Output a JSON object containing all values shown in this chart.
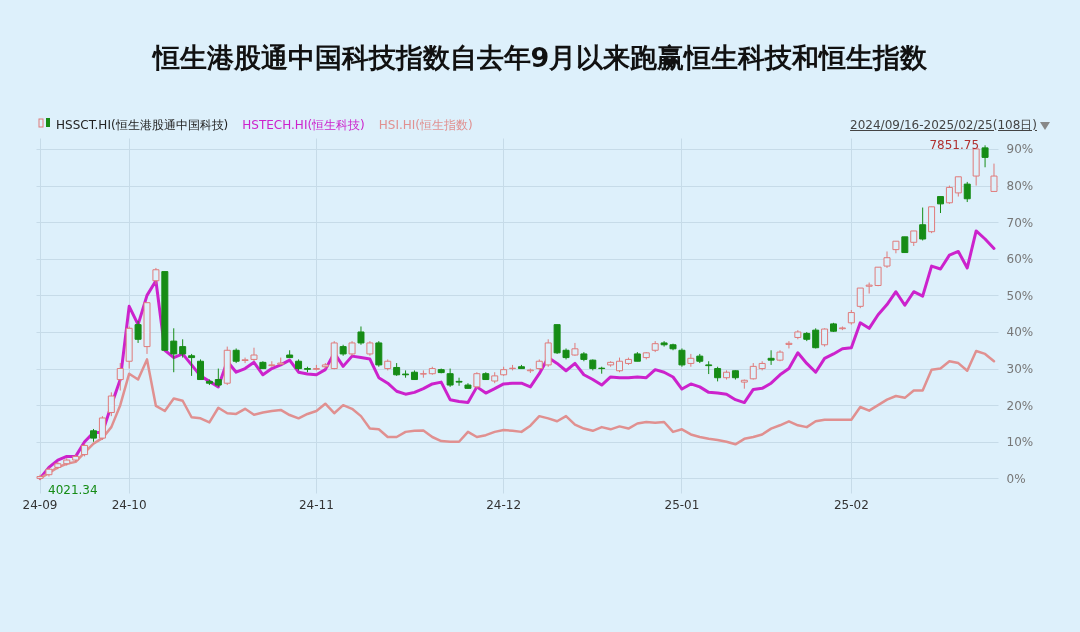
{
  "chart_data": {
    "type": "candlestick",
    "title": "恒生港股通中国科技指数自去年9月以来跑赢恒生科技和恒生指数",
    "categories": [
      "24-09",
      null,
      null,
      null,
      null,
      null,
      null,
      null,
      null,
      null,
      "24-10",
      null,
      null,
      null,
      null,
      null,
      null,
      null,
      null,
      null,
      null,
      null,
      null,
      null,
      null,
      null,
      null,
      null,
      null,
      null,
      null,
      "24-11",
      null,
      null,
      null,
      null,
      null,
      null,
      null,
      null,
      null,
      null,
      null,
      null,
      null,
      null,
      null,
      null,
      null,
      null,
      null,
      null,
      "24-12",
      null,
      null,
      null,
      null,
      null,
      null,
      null,
      null,
      null,
      null,
      null,
      null,
      null,
      null,
      null,
      null,
      null,
      null,
      null,
      "25-01",
      null,
      null,
      null,
      null,
      null,
      null,
      null,
      null,
      null,
      null,
      null,
      null,
      null,
      null,
      null,
      null,
      null,
      null,
      "25-02",
      null,
      null,
      null,
      null,
      null,
      null,
      null,
      null,
      null,
      null,
      null,
      null,
      null,
      null,
      null,
      null
    ],
    "ylim": [
      -4,
      93
    ],
    "yticks": [
      {
        "value": 0,
        "label": "0%"
      },
      {
        "value": 10,
        "label": "10%"
      },
      {
        "value": 20,
        "label": "20%"
      },
      {
        "value": 30,
        "label": "30%"
      },
      {
        "value": 40,
        "label": "40%"
      },
      {
        "value": 50,
        "label": "50%"
      },
      {
        "value": 60,
        "label": "60%"
      },
      {
        "value": 70,
        "label": "70%"
      },
      {
        "value": 80,
        "label": "80%"
      },
      {
        "value": 90,
        "label": "90%"
      }
    ],
    "grid": true,
    "legend": "top left",
    "annotations": [
      {
        "text": "4021.34",
        "x": "24-09",
        "y": -0.5
      },
      "7851.75",
      "2024/09/16-2025/02/25(108日)"
    ],
    "series": [
      {
        "name": "HSSCT.HI(恒生港股通中国科技)",
        "type": "candlestick",
        "color": "#222222",
        "ohlc": [
          [
            0,
            1,
            -0.5,
            0.5
          ],
          [
            1,
            3,
            0.5,
            2.5
          ],
          [
            3,
            4.5,
            2.5,
            4
          ],
          [
            4,
            5.5,
            3.5,
            5
          ],
          [
            5,
            6.5,
            4.5,
            6
          ],
          [
            6.5,
            9.5,
            6,
            9
          ],
          [
            13,
            13.5,
            10,
            11
          ],
          [
            11,
            17,
            10.5,
            16.5
          ],
          [
            18,
            23.5,
            17,
            22.5
          ],
          [
            27,
            31.5,
            24,
            30
          ],
          [
            32,
            41.5,
            30,
            41
          ],
          [
            42,
            43,
            37,
            38
          ],
          [
            36,
            48,
            34,
            48
          ],
          [
            54,
            57.5,
            53,
            57
          ],
          [
            56.5,
            56.5,
            35,
            35
          ],
          [
            37.5,
            41,
            29,
            34
          ],
          [
            36,
            38,
            33,
            34
          ],
          [
            33.5,
            34,
            28,
            33
          ],
          [
            32,
            32.5,
            27,
            27
          ],
          [
            26.5,
            27,
            25.5,
            26
          ],
          [
            27,
            30,
            25,
            25.5
          ],
          [
            26,
            36,
            25.5,
            35
          ],
          [
            35,
            35.5,
            31.5,
            32
          ],
          [
            32.2,
            33,
            31.5,
            32.4
          ],
          [
            32.5,
            35.7,
            32,
            33.7
          ],
          [
            31.7,
            32,
            30,
            30
          ],
          [
            30.8,
            32,
            30.5,
            31
          ],
          [
            31.2,
            33,
            31,
            31.5
          ],
          [
            33.7,
            35,
            33,
            33
          ],
          [
            32,
            32.5,
            29.5,
            30
          ],
          [
            30,
            30.5,
            29,
            29.8
          ],
          [
            29.8,
            31,
            29.5,
            30
          ],
          [
            30.5,
            31.5,
            30,
            31
          ],
          [
            30,
            37.5,
            29.8,
            37
          ],
          [
            36,
            36.5,
            33.5,
            34
          ],
          [
            34,
            37.5,
            33.5,
            37
          ],
          [
            40,
            41.5,
            36.5,
            37
          ],
          [
            34,
            37.5,
            33.5,
            37
          ],
          [
            37,
            37.5,
            30.5,
            31
          ],
          [
            30,
            32.5,
            29.5,
            32
          ],
          [
            30.3,
            31.5,
            28,
            28.3
          ],
          [
            28.5,
            29.5,
            27.5,
            28.3
          ],
          [
            29,
            29.5,
            27,
            27
          ],
          [
            28.5,
            29.5,
            27.5,
            28.6
          ],
          [
            28.6,
            30.5,
            28.3,
            30
          ],
          [
            29.7,
            30,
            28.7,
            28.9
          ],
          [
            28.6,
            30,
            25,
            25.5
          ],
          [
            26.5,
            27.5,
            25.3,
            26.3
          ],
          [
            25.5,
            26,
            24.5,
            24.6
          ],
          [
            25,
            29,
            24.5,
            28.6
          ],
          [
            28.6,
            29,
            27,
            27
          ],
          [
            26.6,
            29,
            26,
            28
          ],
          [
            28.3,
            30.5,
            28,
            29.7
          ],
          [
            30,
            31,
            29.5,
            30.1
          ],
          [
            30.5,
            31,
            30,
            30
          ],
          [
            29.4,
            30,
            28.8,
            29.6
          ],
          [
            30,
            32.5,
            29.5,
            32
          ],
          [
            31,
            38,
            30.5,
            37
          ],
          [
            42,
            42,
            34,
            34.3
          ],
          [
            35,
            35.5,
            32.5,
            33
          ],
          [
            33.7,
            37,
            33.5,
            35.4
          ],
          [
            34,
            34.5,
            32,
            32.5
          ],
          [
            32.3,
            32.5,
            29.5,
            30
          ],
          [
            30.1,
            30.5,
            28.6,
            30
          ],
          [
            31,
            32,
            30.5,
            31.7
          ],
          [
            29.4,
            33,
            29,
            32
          ],
          [
            31.4,
            33,
            31,
            32.5
          ],
          [
            34,
            34.5,
            32,
            32
          ],
          [
            33,
            34.5,
            32.5,
            34.3
          ],
          [
            35,
            37.5,
            34.5,
            36.8
          ],
          [
            37,
            37.5,
            36,
            36.5
          ],
          [
            36.5,
            36.8,
            35,
            35.4
          ],
          [
            35,
            35.5,
            30.5,
            31
          ],
          [
            31.4,
            34,
            30.5,
            32.8
          ],
          [
            33.4,
            34,
            31.5,
            32
          ],
          [
            31,
            32,
            28.5,
            30.8
          ],
          [
            30,
            30.5,
            26.5,
            27.5
          ],
          [
            27.5,
            29.5,
            27,
            29
          ],
          [
            29.4,
            29.5,
            27,
            27.5
          ],
          [
            26.3,
            27,
            24.5,
            26.8
          ],
          [
            27.2,
            31.5,
            27,
            30.6
          ],
          [
            30,
            32,
            29.5,
            31.4
          ],
          [
            32.8,
            35,
            31,
            32.3
          ],
          [
            32.3,
            35,
            32,
            34.5
          ],
          [
            36.6,
            37.5,
            35.5,
            36.9
          ],
          [
            38.5,
            40.5,
            38,
            40
          ],
          [
            39.6,
            40,
            37.5,
            38
          ],
          [
            40.5,
            41,
            35.5,
            35.7
          ],
          [
            36.5,
            41,
            36,
            40.8
          ],
          [
            42.2,
            42.5,
            40,
            40.2
          ],
          [
            40.9,
            41.5,
            40.5,
            41.1
          ],
          [
            42.5,
            46,
            42,
            45.3
          ],
          [
            47,
            52,
            46.5,
            52
          ],
          [
            52.5,
            53.5,
            50.5,
            52.8
          ],
          [
            52.7,
            57.7,
            52.5,
            57.7
          ],
          [
            58,
            62,
            57.5,
            60.3
          ],
          [
            62.5,
            64.8,
            61.5,
            64.8
          ],
          [
            66,
            66,
            61.7,
            61.7
          ],
          [
            64.5,
            67.6,
            63.5,
            67.6
          ],
          [
            69.3,
            74,
            65,
            65.4
          ],
          [
            67.4,
            74.2,
            67,
            74.2
          ],
          [
            77,
            77,
            72.5,
            75
          ],
          [
            75.3,
            80,
            75,
            79.5
          ],
          [
            78,
            82.4,
            77,
            82.4
          ],
          [
            80.4,
            81,
            75.5,
            76.4
          ],
          [
            82.6,
            90,
            80,
            90
          ],
          [
            90.3,
            91,
            85,
            87.7
          ],
          [
            78.4,
            86,
            78.4,
            82.6
          ]
        ],
        "colors": [
          "#e07a7a",
          "#e07a7a",
          "#e07a7a",
          "#e07a7a",
          "#e07a7a",
          "#e07a7a",
          "#168c16",
          "#e07a7a",
          "#e07a7a",
          "#e07a7a",
          "#e07a7a",
          "#168c16",
          "#e07a7a",
          "#e07a7a",
          "#168c16",
          "#168c16",
          "#168c16",
          "#168c16",
          "#168c16",
          "#168c16",
          "#168c16",
          "#e07a7a",
          "#168c16",
          "#e07a7a",
          "#e07a7a",
          "#168c16",
          "#e07a7a",
          "#e07a7a",
          "#168c16",
          "#168c16",
          "#168c16",
          "#e07a7a",
          "#e07a7a",
          "#e07a7a",
          "#168c16",
          "#e07a7a",
          "#168c16",
          "#e07a7a",
          "#168c16",
          "#e07a7a",
          "#168c16",
          "#168c16",
          "#168c16",
          "#e07a7a",
          "#e07a7a",
          "#168c16",
          "#168c16",
          "#168c16",
          "#168c16",
          "#e07a7a",
          "#168c16",
          "#e07a7a",
          "#e07a7a",
          "#e07a7a",
          "#168c16",
          "#e07a7a",
          "#e07a7a",
          "#e07a7a",
          "#168c16",
          "#168c16",
          "#e07a7a",
          "#168c16",
          "#168c16",
          "#168c16",
          "#e07a7a",
          "#e07a7a",
          "#e07a7a",
          "#168c16",
          "#e07a7a",
          "#e07a7a",
          "#168c16",
          "#168c16",
          "#168c16",
          "#e07a7a",
          "#168c16",
          "#168c16",
          "#168c16",
          "#e07a7a",
          "#168c16",
          "#e07a7a",
          "#e07a7a",
          "#e07a7a",
          "#168c16",
          "#e07a7a",
          "#e07a7a",
          "#e07a7a",
          "#168c16",
          "#168c16",
          "#e07a7a",
          "#168c16",
          "#e07a7a",
          "#e07a7a",
          "#e07a7a",
          "#e07a7a",
          "#e07a7a",
          "#e07a7a",
          "#e07a7a",
          "#168c16",
          "#e07a7a",
          "#168c16",
          "#e07a7a",
          "#168c16",
          "#e07a7a",
          "#e07a7a",
          "#168c16",
          "#e07a7a",
          "#168c16",
          "#e07a7a"
        ]
      },
      {
        "name": "HSTECH.HI(恒生科技)",
        "type": "line",
        "color": "#cc22cc",
        "values": [
          0,
          3,
          5,
          6,
          6,
          10,
          12.5,
          12.5,
          20,
          27,
          47,
          42,
          50,
          54,
          35,
          33,
          34,
          31,
          28,
          26.5,
          25,
          32,
          29,
          30,
          31.7,
          28.3,
          30,
          31,
          32.3,
          29,
          28.5,
          28.3,
          29.7,
          34.3,
          30.6,
          33.4,
          33,
          32.6,
          27.5,
          26,
          23.8,
          23,
          23.5,
          24.5,
          25.8,
          26.3,
          21.5,
          21,
          20.7,
          25,
          23.3,
          24.5,
          25.8,
          26,
          26,
          25,
          28.6,
          33,
          31.4,
          29.4,
          31.4,
          28.3,
          27,
          25.5,
          27.7,
          27.5,
          27.5,
          27.7,
          27.5,
          29.7,
          29,
          27.7,
          24.4,
          25.8,
          25,
          23.5,
          23.3,
          23,
          21.5,
          20.7,
          24.3,
          24.6,
          26,
          28.3,
          30,
          34.3,
          31.4,
          29,
          32.8,
          34,
          35.4,
          35.7,
          42.5,
          41,
          44.7,
          47.5,
          51,
          47.3,
          51,
          49.8,
          58,
          57.2,
          61,
          62,
          57.5,
          67.6,
          65.4,
          62.8
        ]
      },
      {
        "name": "HSI.HI(恒生指数)",
        "type": "line",
        "color": "#e09090",
        "values": [
          0,
          1.5,
          3,
          4,
          4.5,
          7,
          9.5,
          11,
          14,
          20,
          28.6,
          27,
          32.5,
          19.8,
          18.4,
          21.8,
          21.2,
          16.7,
          16.4,
          15.3,
          19.3,
          17.8,
          17.6,
          19,
          17.4,
          18,
          18.4,
          18.7,
          17.3,
          16.4,
          17.6,
          18.4,
          20.4,
          17.8,
          20,
          19,
          17,
          13.6,
          13.4,
          11.3,
          11.3,
          12.7,
          13,
          13.1,
          11.3,
          10.2,
          10,
          10,
          12.7,
          11.3,
          11.8,
          12.7,
          13.2,
          13,
          12.7,
          14.4,
          17,
          16.4,
          15.6,
          17,
          14.7,
          13.6,
          13,
          14,
          13.4,
          14.2,
          13.6,
          15,
          15.4,
          15.2,
          15.4,
          12.7,
          13.4,
          12,
          11.3,
          10.8,
          10.5,
          10,
          9.3,
          10.8,
          11.3,
          12,
          13.6,
          14.5,
          15.6,
          14.5,
          14,
          15.6,
          16,
          16,
          16,
          16,
          19.5,
          18.5,
          20,
          21.5,
          22.5,
          22,
          24,
          24,
          29.7,
          30,
          32,
          31.5,
          29.4,
          34.8,
          34,
          32
        ]
      }
    ]
  }
}
